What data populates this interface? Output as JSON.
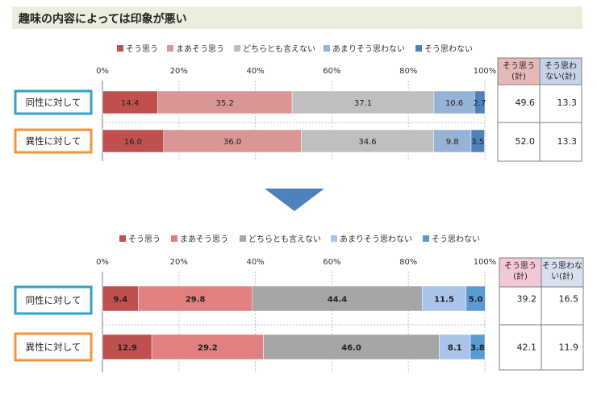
{
  "title": "趣味の内容によっては印象が悪い",
  "categories_legend": [
    "そう思う",
    "まあそう思う",
    "どちらとも言えない",
    "あまりそう思わない",
    "そう思わない"
  ],
  "chart_data": [
    {
      "type": "bar",
      "orientation": "horizontal-stacked-100",
      "xlim": [
        0,
        100
      ],
      "x_ticks": [
        "0%",
        "20%",
        "40%",
        "60%",
        "80%",
        "100%"
      ],
      "categories": [
        "同性に対して",
        "異性に対して"
      ],
      "series": [
        {
          "name": "そう思う",
          "values": [
            14.4,
            16.0
          ]
        },
        {
          "name": "まあそう思う",
          "values": [
            35.2,
            36.0
          ]
        },
        {
          "name": "どちらとも言えない",
          "values": [
            37.1,
            34.6
          ]
        },
        {
          "name": "あまりそう思わない",
          "values": [
            10.6,
            9.8
          ]
        },
        {
          "name": "そう思わない",
          "values": [
            2.7,
            3.5
          ]
        }
      ],
      "colors": [
        "#c0504d",
        "#d99694",
        "#bfbfbf",
        "#95b3d7",
        "#4f81bd"
      ],
      "label_colors": [
        "#c0504d",
        "#d99694",
        "#bfbfbf",
        "#95b3d7",
        "#4f81bd"
      ],
      "legend_position": "top",
      "table": {
        "headers": [
          "そう思う(計)",
          "そう思わない(計)"
        ],
        "header_lines": [
          [
            "そう思う",
            "(計)"
          ],
          [
            "そう思わ",
            "ない(計)"
          ]
        ],
        "header_colors": [
          "#e6b9b8",
          "#c5d3e8"
        ],
        "rows": [
          [
            "49.6",
            "13.3"
          ],
          [
            "52.0",
            "13.3"
          ]
        ]
      }
    },
    {
      "type": "bar",
      "orientation": "horizontal-stacked-100",
      "xlim": [
        0,
        100
      ],
      "x_ticks": [
        "0%",
        "20%",
        "40%",
        "60%",
        "80%",
        "100%"
      ],
      "categories": [
        "同性に対して",
        "異性に対して"
      ],
      "series": [
        {
          "name": "そう思う",
          "values": [
            9.4,
            12.9
          ]
        },
        {
          "name": "まあそう思う",
          "values": [
            29.8,
            29.2
          ]
        },
        {
          "name": "どちらとも言えない",
          "values": [
            44.4,
            46.0
          ]
        },
        {
          "name": "あまりそう思わない",
          "values": [
            11.5,
            8.1
          ]
        },
        {
          "name": "そう思わない",
          "values": [
            5.0,
            3.8
          ]
        }
      ],
      "colors": [
        "#c0504d",
        "#e08080",
        "#a6a6a6",
        "#a9c4e8",
        "#5b9bd5"
      ],
      "label_colors": [
        "#c0504d",
        "#e08080",
        "#a6a6a6",
        "#a9c4e8",
        "#5b9bd5"
      ],
      "legend_position": "top",
      "table": {
        "headers": [
          "そう思う(計)",
          "そう思わない(計)"
        ],
        "header_lines": [
          [
            "そう思う",
            "(計)"
          ],
          [
            "そう思わな",
            "い(計)"
          ]
        ],
        "header_colors": [
          "#f2c8d8",
          "#d8e0f0"
        ],
        "rows": [
          [
            "39.2",
            "16.5"
          ],
          [
            "42.1",
            "11.9"
          ]
        ]
      }
    }
  ],
  "row_box_colors": [
    "#31a3c4",
    "#f0963c"
  ],
  "arrow_color": "#4f81bd"
}
